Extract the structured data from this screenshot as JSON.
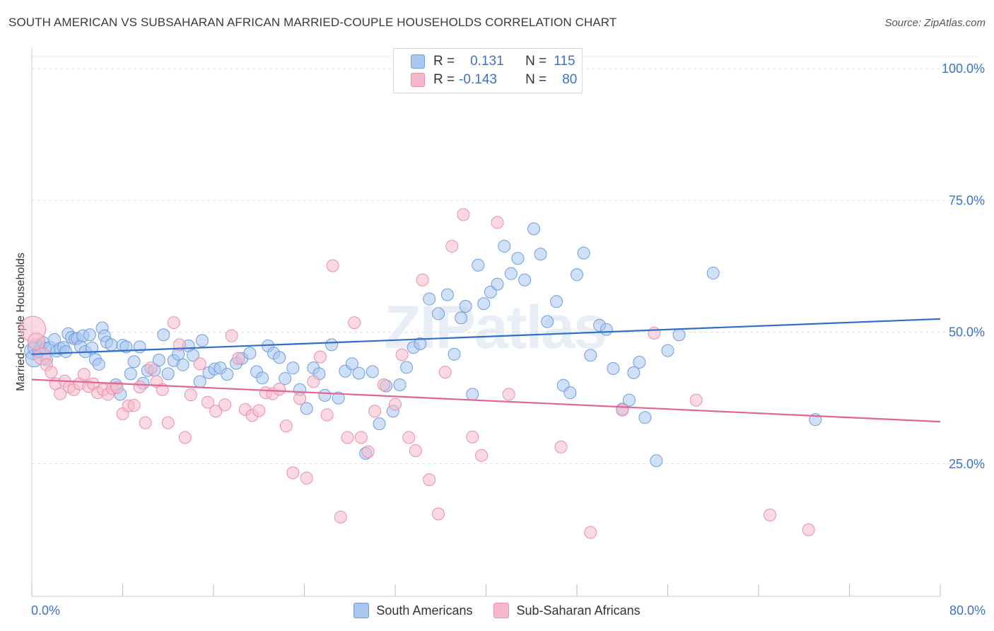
{
  "title": "SOUTH AMERICAN VS SUBSAHARAN AFRICAN MARRIED-COUPLE HOUSEHOLDS CORRELATION CHART",
  "source": "Source: ZipAtlas.com",
  "watermark": "ZIPatlas",
  "legend": {
    "rows": [
      {
        "r_label": "R =",
        "r_value": "0.131",
        "n_label": "N =",
        "n_value": "115"
      },
      {
        "r_label": "R =",
        "r_value": "-0.143",
        "n_label": "N =",
        "n_value": "80"
      }
    ]
  },
  "bottom_legend": [
    "South Americans",
    "Sub-Saharan Africans"
  ],
  "colors": {
    "blue_fill": "#a9c6ee",
    "blue_stroke": "#6d9ee0",
    "blue_line": "#2f6fcb",
    "pink_fill": "#f6b9cb",
    "pink_stroke": "#eb8fab",
    "pink_line": "#e36591",
    "grid": "#dddddd",
    "tick_text": "#3a73c8"
  },
  "chart_data": {
    "type": "scatter",
    "title": "SOUTH AMERICAN VS SUBSAHARAN AFRICAN MARRIED-COUPLE HOUSEHOLDS CORRELATION CHART",
    "xlabel": "",
    "ylabel": "Married-couple Households",
    "xlim": [
      0,
      80
    ],
    "ylim": [
      0,
      100
    ],
    "x_tick_labels": [
      "0.0%",
      "80.0%"
    ],
    "y_ticks": [
      25,
      50,
      75,
      100
    ],
    "y_tick_labels": [
      "25.0%",
      "50.0%",
      "75.0%",
      "100.0%"
    ],
    "grid": true,
    "series": [
      {
        "name": "South Americans",
        "color": "blue",
        "trend": {
          "x": [
            0,
            80
          ],
          "y": [
            45.8,
            52.5
          ]
        },
        "points": [
          [
            0.1,
            46.4
          ],
          [
            0.2,
            45.0
          ],
          [
            0.4,
            47.1
          ],
          [
            0.6,
            46.3
          ],
          [
            0.8,
            47.3
          ],
          [
            1.0,
            48.0
          ],
          [
            1.2,
            46.9
          ],
          [
            1.3,
            44.8
          ],
          [
            1.6,
            47.1
          ],
          [
            2.0,
            48.6
          ],
          [
            2.2,
            46.4
          ],
          [
            2.5,
            46.9
          ],
          [
            2.8,
            47.1
          ],
          [
            3.0,
            46.3
          ],
          [
            3.2,
            49.7
          ],
          [
            3.5,
            49.0
          ],
          [
            3.8,
            48.7
          ],
          [
            4.0,
            48.8
          ],
          [
            4.3,
            47.3
          ],
          [
            4.5,
            49.3
          ],
          [
            4.7,
            46.3
          ],
          [
            5.1,
            49.5
          ],
          [
            5.3,
            47.0
          ],
          [
            5.6,
            44.8
          ],
          [
            5.9,
            43.9
          ],
          [
            6.2,
            50.8
          ],
          [
            6.4,
            49.3
          ],
          [
            6.6,
            48.1
          ],
          [
            7.0,
            47.6
          ],
          [
            7.4,
            40.0
          ],
          [
            7.8,
            38.2
          ],
          [
            8.0,
            47.5
          ],
          [
            8.3,
            47.2
          ],
          [
            8.7,
            42.1
          ],
          [
            9.0,
            44.4
          ],
          [
            9.5,
            47.2
          ],
          [
            9.8,
            40.3
          ],
          [
            10.2,
            42.7
          ],
          [
            10.8,
            42.8
          ],
          [
            11.2,
            44.7
          ],
          [
            11.6,
            49.5
          ],
          [
            12.0,
            42.1
          ],
          [
            12.5,
            44.6
          ],
          [
            12.9,
            45.8
          ],
          [
            13.3,
            43.8
          ],
          [
            13.8,
            47.4
          ],
          [
            14.2,
            45.6
          ],
          [
            14.8,
            40.6
          ],
          [
            15.0,
            48.4
          ],
          [
            15.6,
            42.3
          ],
          [
            16.1,
            43.0
          ],
          [
            16.6,
            43.2
          ],
          [
            17.2,
            42.0
          ],
          [
            18.0,
            44.1
          ],
          [
            18.5,
            45.0
          ],
          [
            19.2,
            46.0
          ],
          [
            19.8,
            42.5
          ],
          [
            20.3,
            41.3
          ],
          [
            20.8,
            47.4
          ],
          [
            21.3,
            46.0
          ],
          [
            21.8,
            45.2
          ],
          [
            22.3,
            41.2
          ],
          [
            23.0,
            43.2
          ],
          [
            23.6,
            39.1
          ],
          [
            24.2,
            35.5
          ],
          [
            24.8,
            43.2
          ],
          [
            25.3,
            42.1
          ],
          [
            25.8,
            38.0
          ],
          [
            26.4,
            47.6
          ],
          [
            27.0,
            37.5
          ],
          [
            27.6,
            42.6
          ],
          [
            28.2,
            44.0
          ],
          [
            28.8,
            42.2
          ],
          [
            29.4,
            27.0
          ],
          [
            30.0,
            42.5
          ],
          [
            30.6,
            32.6
          ],
          [
            31.2,
            39.8
          ],
          [
            31.8,
            35.0
          ],
          [
            32.4,
            40.0
          ],
          [
            33.0,
            43.3
          ],
          [
            33.6,
            47.1
          ],
          [
            34.2,
            47.8
          ],
          [
            35.0,
            56.3
          ],
          [
            35.8,
            53.5
          ],
          [
            36.6,
            57.1
          ],
          [
            37.2,
            45.8
          ],
          [
            37.8,
            52.7
          ],
          [
            38.2,
            54.9
          ],
          [
            38.8,
            38.2
          ],
          [
            39.3,
            62.7
          ],
          [
            39.8,
            55.4
          ],
          [
            40.4,
            57.6
          ],
          [
            41.0,
            59.1
          ],
          [
            41.6,
            66.3
          ],
          [
            42.2,
            61.1
          ],
          [
            42.8,
            64.0
          ],
          [
            43.4,
            59.9
          ],
          [
            44.2,
            69.6
          ],
          [
            44.8,
            64.8
          ],
          [
            45.4,
            52.0
          ],
          [
            46.2,
            55.8
          ],
          [
            46.8,
            39.9
          ],
          [
            47.4,
            38.5
          ],
          [
            48.0,
            60.9
          ],
          [
            48.6,
            65.0
          ],
          [
            49.2,
            45.6
          ],
          [
            50.0,
            51.3
          ],
          [
            50.6,
            50.5
          ],
          [
            51.2,
            43.1
          ],
          [
            52.0,
            35.4
          ],
          [
            52.6,
            37.1
          ],
          [
            53.0,
            42.3
          ],
          [
            53.5,
            44.3
          ],
          [
            54.0,
            33.8
          ],
          [
            55.0,
            25.6
          ],
          [
            56.0,
            46.5
          ],
          [
            57.0,
            49.5
          ],
          [
            60.0,
            61.2
          ],
          [
            69.0,
            33.4
          ]
        ]
      },
      {
        "name": "Sub-Saharan Africans",
        "color": "pink",
        "trend": {
          "x": [
            0,
            80
          ],
          "y": [
            41.0,
            33.0
          ]
        },
        "points": [
          [
            0.1,
            50.6
          ],
          [
            0.4,
            48.2
          ],
          [
            0.9,
            45.4
          ],
          [
            1.3,
            43.8
          ],
          [
            1.7,
            42.4
          ],
          [
            2.1,
            40.2
          ],
          [
            2.5,
            38.3
          ],
          [
            2.9,
            40.7
          ],
          [
            3.3,
            39.6
          ],
          [
            3.7,
            39.1
          ],
          [
            4.2,
            40.2
          ],
          [
            4.6,
            42.0
          ],
          [
            5.0,
            39.7
          ],
          [
            5.4,
            40.2
          ],
          [
            5.8,
            38.5
          ],
          [
            6.3,
            39.1
          ],
          [
            6.7,
            38.2
          ],
          [
            7.1,
            39.3
          ],
          [
            7.5,
            39.5
          ],
          [
            8.0,
            34.5
          ],
          [
            8.5,
            36.0
          ],
          [
            9.0,
            36.1
          ],
          [
            9.5,
            39.6
          ],
          [
            10.0,
            32.8
          ],
          [
            10.5,
            43.2
          ],
          [
            11.0,
            40.6
          ],
          [
            11.5,
            39.1
          ],
          [
            12.0,
            32.8
          ],
          [
            12.5,
            51.8
          ],
          [
            13.0,
            47.6
          ],
          [
            13.5,
            30.0
          ],
          [
            14.0,
            38.1
          ],
          [
            14.8,
            44.0
          ],
          [
            15.5,
            36.7
          ],
          [
            16.2,
            35.0
          ],
          [
            17.0,
            36.2
          ],
          [
            17.6,
            49.3
          ],
          [
            18.2,
            45.0
          ],
          [
            18.8,
            35.3
          ],
          [
            19.4,
            34.2
          ],
          [
            20.0,
            35.1
          ],
          [
            20.6,
            38.5
          ],
          [
            21.2,
            38.3
          ],
          [
            21.8,
            39.2
          ],
          [
            22.4,
            32.2
          ],
          [
            23.0,
            23.3
          ],
          [
            23.6,
            37.4
          ],
          [
            24.2,
            22.3
          ],
          [
            24.8,
            40.6
          ],
          [
            25.4,
            45.3
          ],
          [
            26.0,
            34.3
          ],
          [
            26.5,
            62.6
          ],
          [
            27.2,
            14.9
          ],
          [
            27.8,
            30.0
          ],
          [
            28.4,
            51.8
          ],
          [
            29.0,
            30.0
          ],
          [
            29.6,
            27.3
          ],
          [
            30.2,
            35.0
          ],
          [
            31.0,
            40.0
          ],
          [
            32.0,
            36.3
          ],
          [
            32.6,
            45.7
          ],
          [
            33.2,
            30.0
          ],
          [
            33.8,
            27.5
          ],
          [
            34.4,
            59.9
          ],
          [
            35.0,
            22.0
          ],
          [
            35.8,
            15.5
          ],
          [
            36.4,
            42.4
          ],
          [
            37.0,
            66.3
          ],
          [
            38.0,
            72.3
          ],
          [
            38.8,
            30.1
          ],
          [
            39.6,
            26.6
          ],
          [
            41.0,
            70.8
          ],
          [
            42.0,
            38.2
          ],
          [
            46.6,
            28.2
          ],
          [
            49.2,
            12.0
          ],
          [
            52.0,
            35.2
          ],
          [
            54.8,
            49.8
          ],
          [
            58.5,
            37.1
          ],
          [
            65.0,
            15.3
          ],
          [
            68.4,
            12.5
          ]
        ]
      }
    ]
  }
}
